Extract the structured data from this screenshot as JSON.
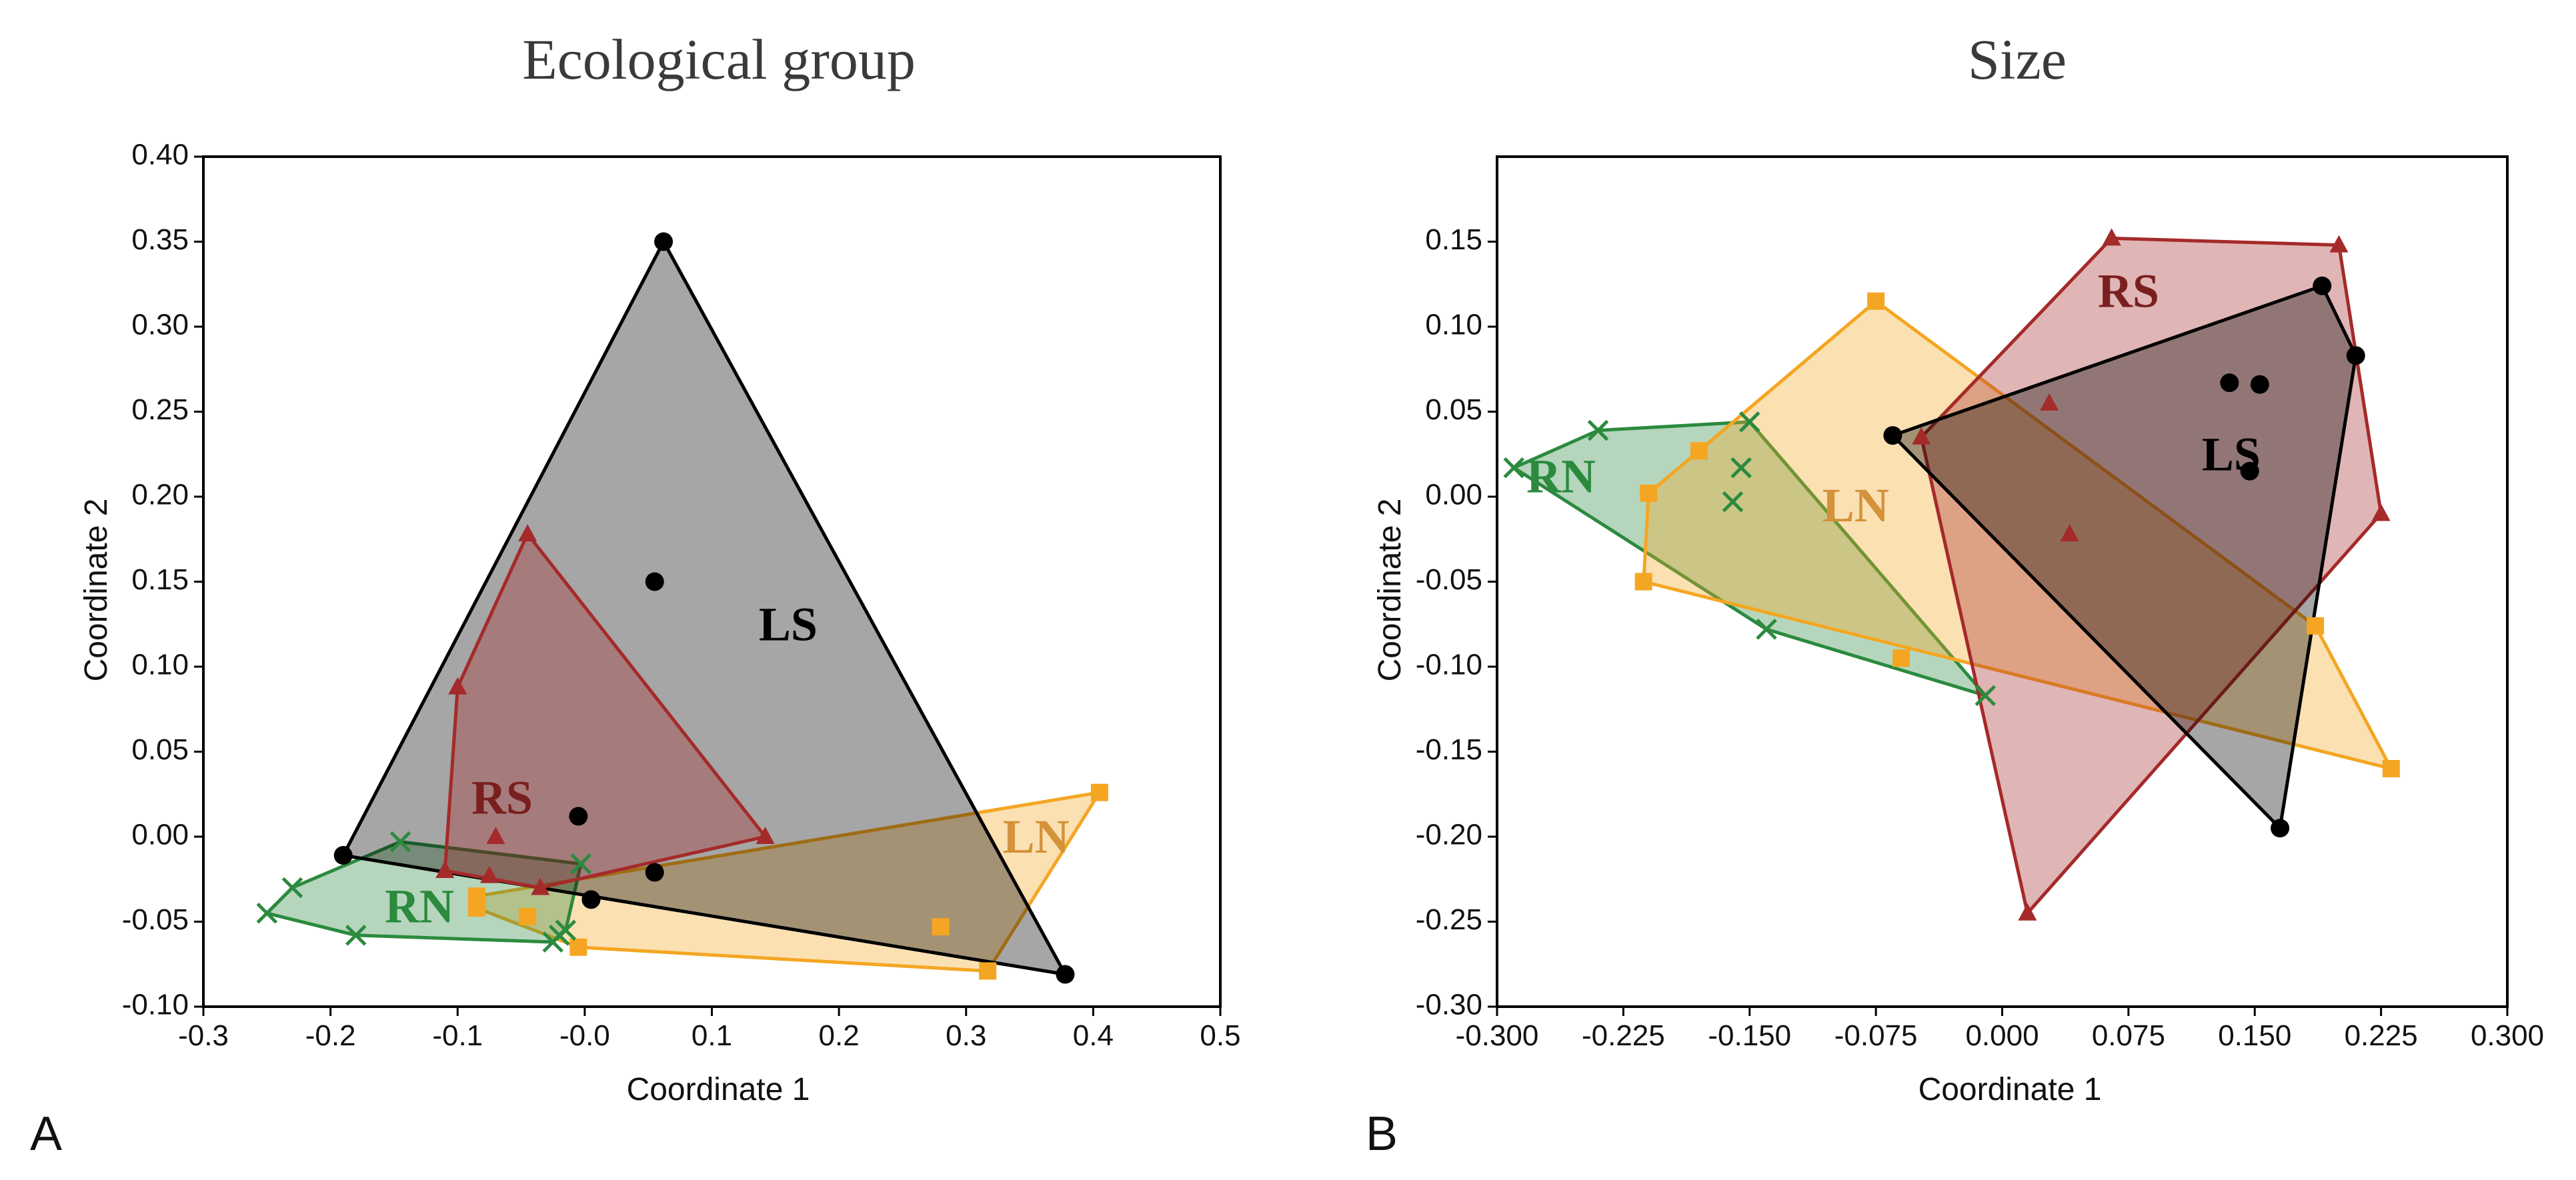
{
  "chart_data": [
    {
      "id": "A",
      "type": "scatter",
      "panel_letter": "A",
      "title": "Ecological group",
      "xlabel": "Coordinate 1",
      "ylabel": "Coordinate 2",
      "xlim": [
        -0.3,
        0.5
      ],
      "ylim": [
        -0.1,
        0.4
      ],
      "xticks": [
        -0.3,
        -0.2,
        -0.1,
        0.0,
        0.1,
        0.2,
        0.3,
        0.4,
        0.5
      ],
      "xtick_labels": [
        "-0.3",
        "-0.2",
        "-0.1",
        "-0.0",
        "0.1",
        "0.2",
        "0.3",
        "0.4",
        "0.5"
      ],
      "yticks": [
        -0.1,
        -0.05,
        0.0,
        0.05,
        0.1,
        0.15,
        0.2,
        0.25,
        0.3,
        0.35,
        0.4
      ],
      "ytick_labels": [
        "-0.10",
        "-0.05",
        "0.00",
        "0.05",
        "0.10",
        "0.15",
        "0.20",
        "0.25",
        "0.30",
        "0.35",
        "0.40"
      ],
      "series": [
        {
          "name": "LN",
          "color": "#f4a622",
          "marker": "square",
          "hull": [
            [
              0.405,
              0.026
            ],
            [
              0.317,
              -0.079
            ],
            [
              -0.005,
              -0.065
            ],
            [
              -0.085,
              -0.042
            ],
            [
              -0.085,
              -0.035
            ]
          ],
          "points": [
            [
              0.405,
              0.026
            ],
            [
              0.317,
              -0.079
            ],
            [
              0.28,
              -0.053
            ],
            [
              -0.005,
              -0.065
            ],
            [
              -0.085,
              -0.042
            ],
            [
              -0.085,
              -0.035
            ],
            [
              -0.045,
              -0.047
            ]
          ]
        },
        {
          "name": "RN",
          "color": "#2b8a3e",
          "marker": "x",
          "hull": [
            [
              -0.25,
              -0.045
            ],
            [
              -0.23,
              -0.03
            ],
            [
              -0.145,
              -0.003
            ],
            [
              -0.003,
              -0.016
            ],
            [
              -0.015,
              -0.055
            ],
            [
              -0.025,
              -0.062
            ],
            [
              -0.18,
              -0.058
            ]
          ],
          "points": [
            [
              -0.25,
              -0.045
            ],
            [
              -0.23,
              -0.03
            ],
            [
              -0.145,
              -0.003
            ],
            [
              -0.003,
              -0.016
            ],
            [
              -0.015,
              -0.055
            ],
            [
              -0.025,
              -0.062
            ],
            [
              -0.18,
              -0.058
            ],
            [
              -0.02,
              -0.058
            ]
          ]
        },
        {
          "name": "LS",
          "color": "#000000",
          "marker": "circle",
          "hull": [
            [
              0.062,
              0.35
            ],
            [
              0.378,
              -0.081
            ],
            [
              -0.19,
              -0.011
            ]
          ],
          "points": [
            [
              0.062,
              0.35
            ],
            [
              0.378,
              -0.081
            ],
            [
              -0.19,
              -0.011
            ],
            [
              0.055,
              0.15
            ],
            [
              -0.005,
              0.012
            ],
            [
              0.055,
              -0.021
            ],
            [
              0.005,
              -0.037
            ]
          ]
        },
        {
          "name": "RS",
          "color": "#a52a2a",
          "marker": "triangle",
          "hull": [
            [
              -0.045,
              0.178
            ],
            [
              0.142,
              0.0
            ],
            [
              -0.035,
              -0.03
            ],
            [
              -0.11,
              -0.02
            ],
            [
              -0.1,
              0.088
            ]
          ],
          "points": [
            [
              -0.045,
              0.178
            ],
            [
              0.142,
              0.0
            ],
            [
              -0.035,
              -0.03
            ],
            [
              -0.11,
              -0.02
            ],
            [
              -0.1,
              0.088
            ],
            [
              -0.07,
              0.0
            ],
            [
              -0.075,
              -0.023
            ]
          ]
        }
      ],
      "group_labels": [
        {
          "text": "LS",
          "x": 0.16,
          "y": 0.122,
          "color": "#000000"
        },
        {
          "text": "RS",
          "x": -0.065,
          "y": 0.02,
          "color": "#7a1f1f"
        },
        {
          "text": "LN",
          "x": 0.355,
          "y": -0.003,
          "color": "#d4923a"
        },
        {
          "text": "RN",
          "x": -0.13,
          "y": -0.044,
          "color": "#2b8a3e"
        }
      ]
    },
    {
      "id": "B",
      "type": "scatter",
      "panel_letter": "B",
      "title": "Size",
      "xlabel": "Coordinate 1",
      "ylabel": "Coordinate 2",
      "xlim": [
        -0.3,
        0.3
      ],
      "ylim": [
        -0.3,
        0.2
      ],
      "xticks": [
        -0.3,
        -0.225,
        -0.15,
        -0.075,
        0.0,
        0.075,
        0.15,
        0.225,
        0.3
      ],
      "xtick_labels": [
        "-0.300",
        "-0.225",
        "-0.150",
        "-0.075",
        "0.000",
        "0.075",
        "0.150",
        "0.225",
        "0.300"
      ],
      "yticks": [
        -0.3,
        -0.25,
        -0.2,
        -0.15,
        -0.1,
        -0.05,
        0.0,
        0.05,
        0.1,
        0.15
      ],
      "ytick_labels": [
        "-0.30",
        "-0.25",
        "-0.20",
        "-0.15",
        "-0.10",
        "-0.05",
        "0.00",
        "0.05",
        "0.10",
        "0.15"
      ],
      "series": [
        {
          "name": "RN",
          "color": "#2b8a3e",
          "marker": "x",
          "hull": [
            [
              -0.29,
              0.017
            ],
            [
              -0.24,
              0.039
            ],
            [
              -0.15,
              0.044
            ],
            [
              -0.01,
              -0.117
            ],
            [
              -0.14,
              -0.078
            ]
          ],
          "points": [
            [
              -0.29,
              0.017
            ],
            [
              -0.24,
              0.039
            ],
            [
              -0.15,
              0.044
            ],
            [
              -0.01,
              -0.117
            ],
            [
              -0.14,
              -0.078
            ],
            [
              -0.155,
              0.017
            ],
            [
              -0.16,
              -0.003
            ]
          ]
        },
        {
          "name": "LN",
          "color": "#f4a622",
          "marker": "square",
          "hull": [
            [
              -0.075,
              0.115
            ],
            [
              0.186,
              -0.076
            ],
            [
              0.231,
              -0.16
            ],
            [
              -0.213,
              -0.05
            ],
            [
              -0.21,
              0.002
            ],
            [
              -0.18,
              0.027
            ]
          ],
          "points": [
            [
              -0.075,
              0.115
            ],
            [
              0.186,
              -0.076
            ],
            [
              0.231,
              -0.16
            ],
            [
              -0.213,
              -0.05
            ],
            [
              -0.21,
              0.002
            ],
            [
              -0.18,
              0.027
            ],
            [
              -0.06,
              -0.095
            ]
          ]
        },
        {
          "name": "RS",
          "color": "#a52a2a",
          "marker": "triangle",
          "hull": [
            [
              0.065,
              0.152
            ],
            [
              0.2,
              0.148
            ],
            [
              0.225,
              -0.01
            ],
            [
              0.015,
              -0.245
            ],
            [
              -0.048,
              0.035
            ]
          ],
          "points": [
            [
              0.065,
              0.152
            ],
            [
              0.2,
              0.148
            ],
            [
              0.225,
              -0.01
            ],
            [
              0.015,
              -0.245
            ],
            [
              -0.048,
              0.035
            ],
            [
              0.028,
              0.055
            ],
            [
              0.04,
              -0.022
            ]
          ]
        },
        {
          "name": "LS",
          "color": "#000000",
          "marker": "circle",
          "hull": [
            [
              0.19,
              0.124
            ],
            [
              0.21,
              0.083
            ],
            [
              0.165,
              -0.195
            ],
            [
              -0.065,
              0.036
            ]
          ],
          "points": [
            [
              0.19,
              0.124
            ],
            [
              0.21,
              0.083
            ],
            [
              0.165,
              -0.195
            ],
            [
              -0.065,
              0.036
            ],
            [
              0.135,
              0.067
            ],
            [
              0.153,
              0.066
            ],
            [
              0.147,
              0.015
            ]
          ]
        }
      ],
      "group_labels": [
        {
          "text": "RS",
          "x": 0.075,
          "y": 0.118,
          "color": "#7a1f1f"
        },
        {
          "text": "LS",
          "x": 0.136,
          "y": 0.022,
          "color": "#000000"
        },
        {
          "text": "RN",
          "x": -0.262,
          "y": 0.009,
          "color": "#2b8a3e"
        },
        {
          "text": "LN",
          "x": -0.087,
          "y": -0.008,
          "color": "#d4923a"
        }
      ]
    }
  ]
}
